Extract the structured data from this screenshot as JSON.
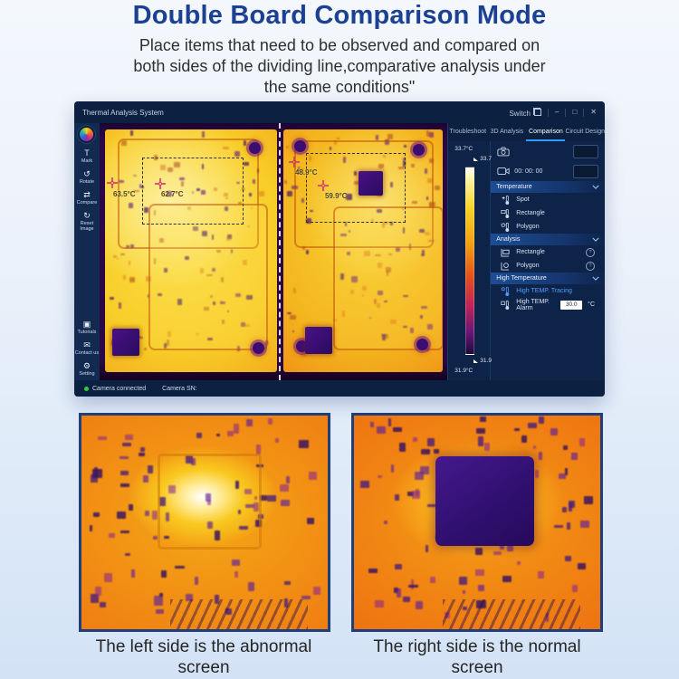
{
  "colors": {
    "title_blue": "#1c4193",
    "tab_accent": "#2e9bff",
    "tracing_blue": "#4f9cff",
    "status_green": "#2ecc40"
  },
  "page": {
    "title": "Double Board Comparison Mode",
    "subtitle_line1": "Place items that need to be observed and compared on",
    "subtitle_line2": "both sides of the dividing line,comparative analysis under",
    "subtitle_line3": "the same conditions\""
  },
  "window": {
    "title": "Thermal Analysis System",
    "switch_label": "Switch",
    "minimize": "–",
    "maximize": "□",
    "close": "✕",
    "tabs": [
      {
        "label": "Troubleshoot"
      },
      {
        "label": "3D Analysis"
      },
      {
        "label": "Comparison"
      },
      {
        "label": "Circuit Design"
      }
    ],
    "active_tab": "Comparison",
    "sidebar": {
      "items": [
        {
          "label": "Mark",
          "icon": "T"
        },
        {
          "label": "Rotate",
          "icon": "↺"
        },
        {
          "label": "Compare",
          "icon": "⇄"
        },
        {
          "label": "Reset Image",
          "icon": "↻"
        }
      ],
      "bottom_items": [
        {
          "label": "Tutorials",
          "icon": "▣"
        },
        {
          "label": "Contact us",
          "icon": "✉"
        },
        {
          "label": "Setting",
          "icon": "⚙"
        }
      ]
    },
    "colorbar": {
      "max_label": "33.7°C",
      "max_tick": "33.7",
      "min_tick": "31.9",
      "min_label": "31.9°C"
    },
    "recorder": {
      "timer": "00: 00: 00"
    },
    "temperature": {
      "title": "Temperature",
      "items": [
        {
          "label": "Spot"
        },
        {
          "label": "Rectangle"
        },
        {
          "label": "Polygon"
        }
      ]
    },
    "analysis": {
      "title": "Analysis",
      "items": [
        {
          "label": "Rectangle"
        },
        {
          "label": "Polygon"
        }
      ]
    },
    "high_temperature": {
      "title": "High Temperature",
      "tracing_label": "High TEMP. Tracing",
      "alarm_label": "High TEMP. Alarm",
      "alarm_value": "30.0",
      "alarm_unit": "°C"
    },
    "measurements": {
      "left_spot": "63.5°C",
      "left_rect": "62.7°C",
      "right_spot": "48.9°C",
      "right_rect": "59.9°C"
    },
    "statusbar": {
      "camera_status": "Camera connected",
      "camera_sn_label": "Camera SN:"
    }
  },
  "bottom": {
    "left_caption": "The left side is the abnormal screen",
    "right_caption": "The right side is the normal screen"
  }
}
